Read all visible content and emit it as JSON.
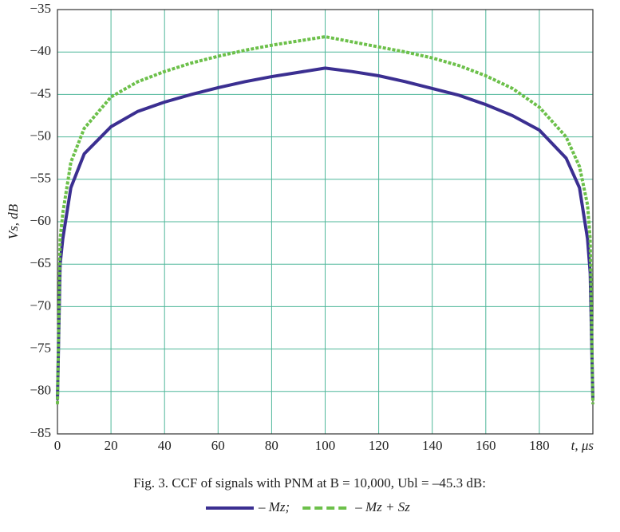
{
  "chart_data": {
    "type": "line",
    "caption": "Fig. 3. CCF of signals with PNM at B = 10,000, Ubl = –45.3 dB:",
    "ylabel": "Vs, dB",
    "xlabel": "t, μs",
    "x": [
      0,
      1,
      2,
      5,
      10,
      20,
      30,
      40,
      50,
      60,
      70,
      80,
      90,
      100,
      110,
      120,
      130,
      140,
      150,
      160,
      170,
      180,
      190,
      195,
      198,
      199,
      200
    ],
    "series": [
      {
        "name": "– Mz;",
        "color": "#3b2f91",
        "dash": false,
        "values": [
          -81,
          -65,
          -62,
          -56,
          -52,
          -48.8,
          -47,
          -45.9,
          -45,
          -44.2,
          -43.5,
          -42.9,
          -42.4,
          -41.9,
          -42.3,
          -42.8,
          -43.5,
          -44.3,
          -45.1,
          -46.2,
          -47.5,
          -49.2,
          -52.5,
          -56,
          -62,
          -66,
          -81
        ]
      },
      {
        "name": "– Mz + Sz",
        "color": "#6cc04a",
        "dash": true,
        "values": [
          -81.5,
          -62,
          -59,
          -53,
          -49,
          -45.3,
          -43.5,
          -42.3,
          -41.3,
          -40.5,
          -39.8,
          -39.2,
          -38.7,
          -38.2,
          -38.8,
          -39.4,
          -40,
          -40.7,
          -41.6,
          -42.8,
          -44.3,
          -46.5,
          -50,
          -53.5,
          -58,
          -62,
          -81.5
        ]
      }
    ],
    "xlim": [
      0,
      200
    ],
    "xticks": [
      0,
      20,
      40,
      60,
      80,
      100,
      120,
      140,
      160,
      180
    ],
    "ylim": [
      -85,
      -35
    ],
    "yticks": [
      {
        "value": -85,
        "label": "−85"
      },
      {
        "value": -80,
        "label": "−80"
      },
      {
        "value": -75,
        "label": "−75"
      },
      {
        "value": -70,
        "label": "−70"
      },
      {
        "value": -65,
        "label": "−65"
      },
      {
        "value": -60,
        "label": "−60"
      },
      {
        "value": -55,
        "label": "−55"
      },
      {
        "value": -50,
        "label": "−50"
      },
      {
        "value": -45,
        "label": "−45"
      },
      {
        "value": -40,
        "label": "−40"
      },
      {
        "value": -35,
        "label": "−35"
      }
    ],
    "grid": true
  }
}
